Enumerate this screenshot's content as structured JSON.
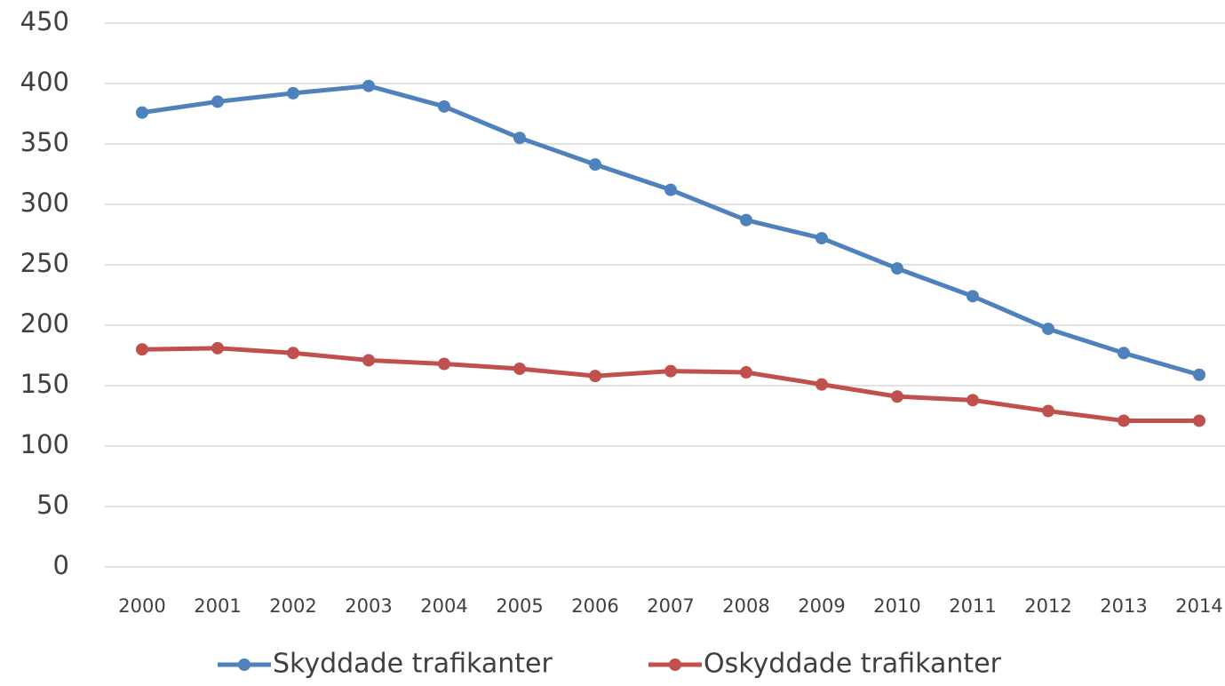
{
  "chart_data": {
    "type": "line",
    "categories": [
      "2000",
      "2001",
      "2002",
      "2003",
      "2004",
      "2005",
      "2006",
      "2007",
      "2008",
      "2009",
      "2010",
      "2011",
      "2012",
      "2013",
      "2014"
    ],
    "series": [
      {
        "name": "Skyddade trafikanter",
        "color": "#4f81bd",
        "values": [
          376,
          385,
          392,
          398,
          381,
          355,
          333,
          312,
          287,
          272,
          247,
          224,
          197,
          177,
          159
        ]
      },
      {
        "name": "Oskyddade trafikanter",
        "color": "#c0504d",
        "values": [
          180,
          181,
          177,
          171,
          168,
          164,
          158,
          162,
          161,
          151,
          141,
          138,
          129,
          121,
          121
        ]
      }
    ],
    "ylim": [
      0,
      450
    ],
    "yticks": [
      0,
      50,
      100,
      150,
      200,
      250,
      300,
      350,
      400,
      450
    ],
    "grid": true,
    "legend": "bottom"
  }
}
